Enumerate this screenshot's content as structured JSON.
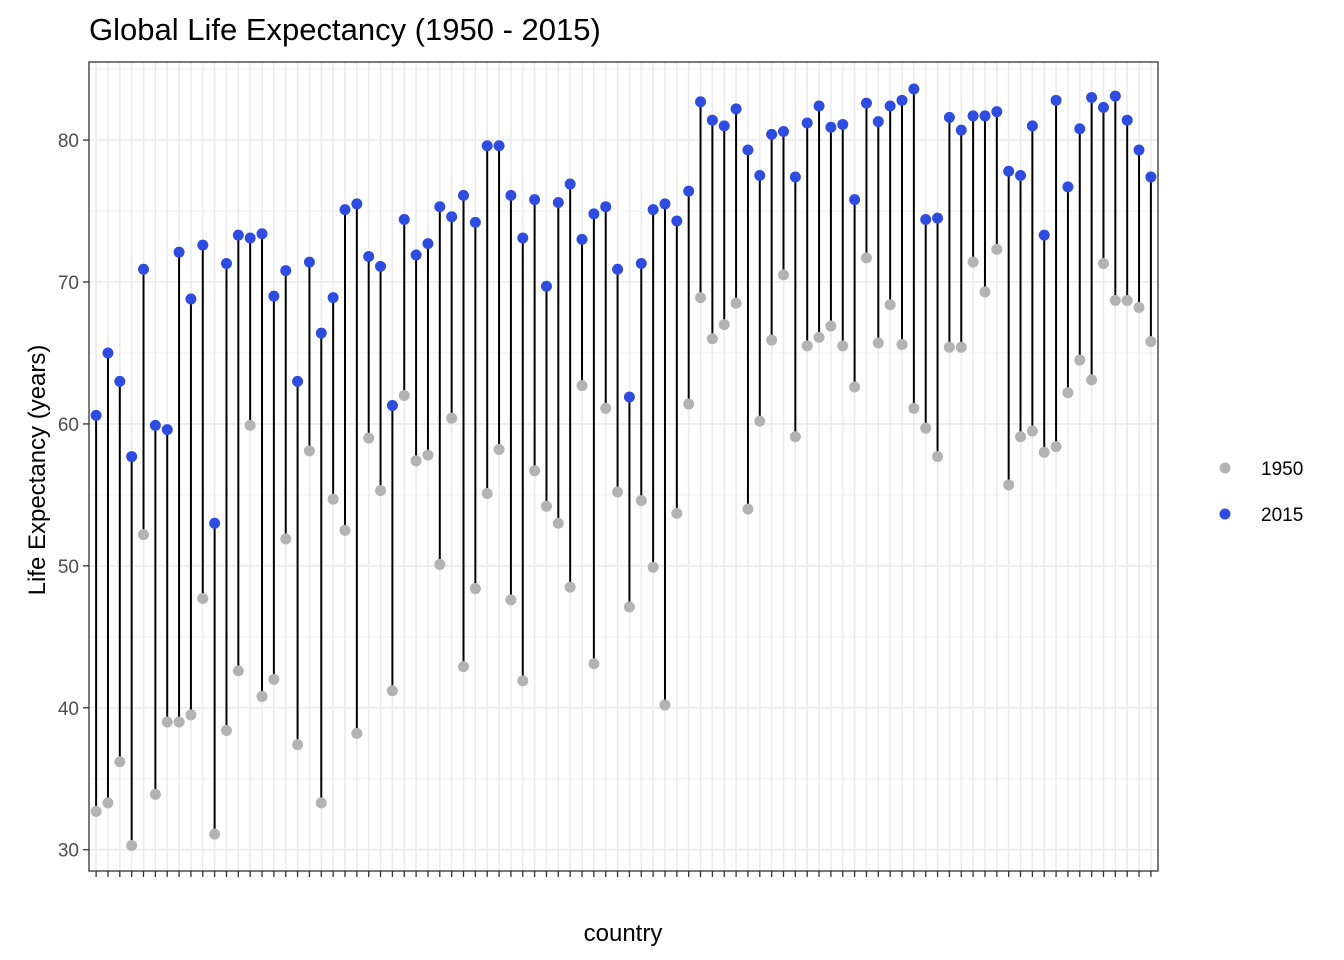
{
  "chart_data": {
    "type": "dumbbell",
    "title": "Global Life Expectancy (1950 - 2015)",
    "xlabel": "country",
    "ylabel": "Life Expectancy (years)",
    "ylim": [
      28.5,
      85.5
    ],
    "yticks": [
      30,
      40,
      50,
      60,
      70,
      80
    ],
    "grid": true,
    "legend_position": "right",
    "series": [
      {
        "name": "1950",
        "color": "#b3b3b3",
        "values": [
          32.7,
          33.3,
          36.2,
          30.3,
          52.2,
          33.9,
          39.0,
          39.0,
          39.5,
          47.7,
          31.1,
          38.4,
          42.6,
          59.9,
          40.8,
          42.0,
          51.9,
          37.4,
          58.1,
          33.3,
          54.7,
          52.5,
          38.2,
          59.0,
          55.3,
          41.2,
          62.0,
          57.4,
          57.8,
          50.1,
          60.4,
          42.9,
          48.4,
          55.1,
          58.2,
          47.6,
          41.9,
          56.7,
          54.2,
          53.0,
          48.5,
          62.7,
          43.1,
          61.1,
          55.2,
          47.1,
          54.6,
          49.9,
          40.2,
          53.7,
          61.4,
          68.9,
          66.0,
          67.0,
          68.5,
          54.0,
          60.2,
          65.9,
          70.5,
          59.1,
          65.5,
          66.1,
          66.9,
          65.5,
          62.6,
          71.7,
          65.7,
          68.4,
          65.6,
          61.1,
          59.7,
          57.7,
          65.4,
          65.4,
          71.4,
          69.3,
          72.3,
          55.7,
          59.1,
          59.5,
          58.0,
          58.4,
          62.2,
          64.5,
          63.1,
          71.3,
          68.7,
          68.7,
          68.2,
          65.8
        ]
      },
      {
        "name": "2015",
        "color": "#2e4de0",
        "values": [
          60.6,
          65.0,
          63.0,
          57.7,
          70.9,
          59.9,
          59.6,
          72.1,
          68.8,
          72.6,
          53.0,
          71.3,
          73.3,
          73.1,
          73.4,
          69.0,
          70.8,
          63.0,
          71.4,
          66.4,
          68.9,
          75.1,
          75.5,
          71.8,
          71.1,
          61.3,
          74.4,
          71.9,
          72.7,
          75.3,
          74.6,
          76.1,
          74.2,
          79.6,
          79.6,
          76.1,
          73.1,
          75.8,
          69.7,
          75.6,
          76.9,
          73.0,
          74.8,
          75.3,
          70.9,
          61.9,
          71.3,
          75.1,
          75.5,
          74.3,
          76.4,
          82.7,
          81.4,
          81.0,
          82.2,
          79.3,
          77.5,
          80.4,
          80.6,
          77.4,
          81.2,
          82.4,
          80.9,
          81.1,
          75.8,
          82.6,
          81.3,
          82.4,
          82.8,
          83.6,
          74.4,
          74.5,
          81.6,
          80.7,
          81.7,
          81.7,
          82.0,
          77.8,
          77.5,
          81.0,
          73.3,
          82.8,
          76.7,
          80.8,
          83.0,
          82.3,
          83.1,
          81.4,
          79.3,
          77.4
        ]
      }
    ]
  }
}
